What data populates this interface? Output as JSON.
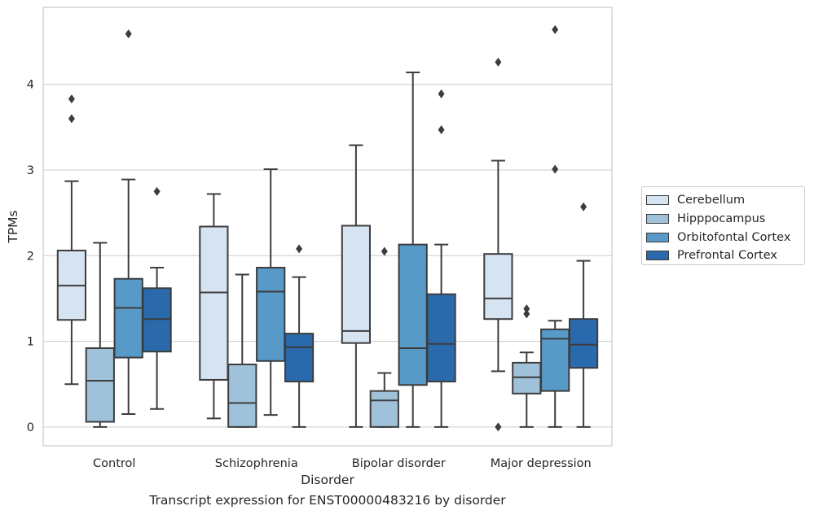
{
  "caption": "Transcript expression for ENST00000483216 by disorder",
  "chart_data": {
    "type": "box",
    "xlabel": "Disorder",
    "ylabel": "TPMs",
    "ylim": [
      -0.22,
      4.9
    ],
    "yticks": [
      0,
      1,
      2,
      3,
      4
    ],
    "grid": "horizontal",
    "legend_position": "right",
    "categories": [
      "Control",
      "Schizophrenia",
      "Bipolar disorder",
      "Major depression"
    ],
    "series": [
      {
        "name": "Cerebellum",
        "color": "#d6e3f0",
        "boxes": [
          {
            "whisker_low": 0.5,
            "q1": 1.25,
            "median": 1.65,
            "q3": 2.06,
            "whisker_high": 2.87,
            "outliers": [
              3.6,
              3.83
            ]
          },
          {
            "whisker_low": 0.1,
            "q1": 0.55,
            "median": 1.57,
            "q3": 2.34,
            "whisker_high": 2.72,
            "outliers": []
          },
          {
            "whisker_low": 0.0,
            "q1": 0.98,
            "median": 1.12,
            "q3": 2.35,
            "whisker_high": 3.29,
            "outliers": []
          },
          {
            "whisker_low": 0.65,
            "q1": 1.26,
            "median": 1.5,
            "q3": 2.02,
            "whisker_high": 3.11,
            "outliers": [
              0.0,
              4.26
            ]
          }
        ]
      },
      {
        "name": "Hipppocampus",
        "color": "#9fc2da",
        "boxes": [
          {
            "whisker_low": 0.0,
            "q1": 0.06,
            "median": 0.54,
            "q3": 0.92,
            "whisker_high": 2.15,
            "outliers": []
          },
          {
            "whisker_low": 0.0,
            "q1": 0.0,
            "median": 0.28,
            "q3": 0.73,
            "whisker_high": 1.78,
            "outliers": []
          },
          {
            "whisker_low": 0.0,
            "q1": 0.0,
            "median": 0.31,
            "q3": 0.42,
            "whisker_high": 0.63,
            "outliers": [
              2.05
            ]
          },
          {
            "whisker_low": 0.0,
            "q1": 0.39,
            "median": 0.58,
            "q3": 0.75,
            "whisker_high": 0.87,
            "outliers": [
              1.32,
              1.38
            ]
          }
        ]
      },
      {
        "name": "Orbitofontal Cortex",
        "color": "#5799c7",
        "boxes": [
          {
            "whisker_low": 0.15,
            "q1": 0.81,
            "median": 1.39,
            "q3": 1.73,
            "whisker_high": 2.89,
            "outliers": [
              4.59
            ]
          },
          {
            "whisker_low": 0.14,
            "q1": 0.77,
            "median": 1.58,
            "q3": 1.86,
            "whisker_high": 3.01,
            "outliers": []
          },
          {
            "whisker_low": 0.0,
            "q1": 0.49,
            "median": 0.92,
            "q3": 2.13,
            "whisker_high": 4.14,
            "outliers": []
          },
          {
            "whisker_low": 0.0,
            "q1": 0.42,
            "median": 1.03,
            "q3": 1.14,
            "whisker_high": 1.24,
            "outliers": [
              3.01,
              4.64
            ]
          }
        ]
      },
      {
        "name": "Prefrontal Cortex",
        "color": "#2a6aac",
        "boxes": [
          {
            "whisker_low": 0.21,
            "q1": 0.88,
            "median": 1.26,
            "q3": 1.62,
            "whisker_high": 1.86,
            "outliers": [
              2.75
            ]
          },
          {
            "whisker_low": 0.0,
            "q1": 0.53,
            "median": 0.93,
            "q3": 1.09,
            "whisker_high": 1.75,
            "outliers": [
              2.08
            ]
          },
          {
            "whisker_low": 0.0,
            "q1": 0.53,
            "median": 0.97,
            "q3": 1.55,
            "whisker_high": 2.13,
            "outliers": [
              3.47,
              3.89
            ]
          },
          {
            "whisker_low": 0.0,
            "q1": 0.69,
            "median": 0.96,
            "q3": 1.26,
            "whisker_high": 1.94,
            "outliers": [
              2.57
            ]
          }
        ]
      }
    ]
  }
}
